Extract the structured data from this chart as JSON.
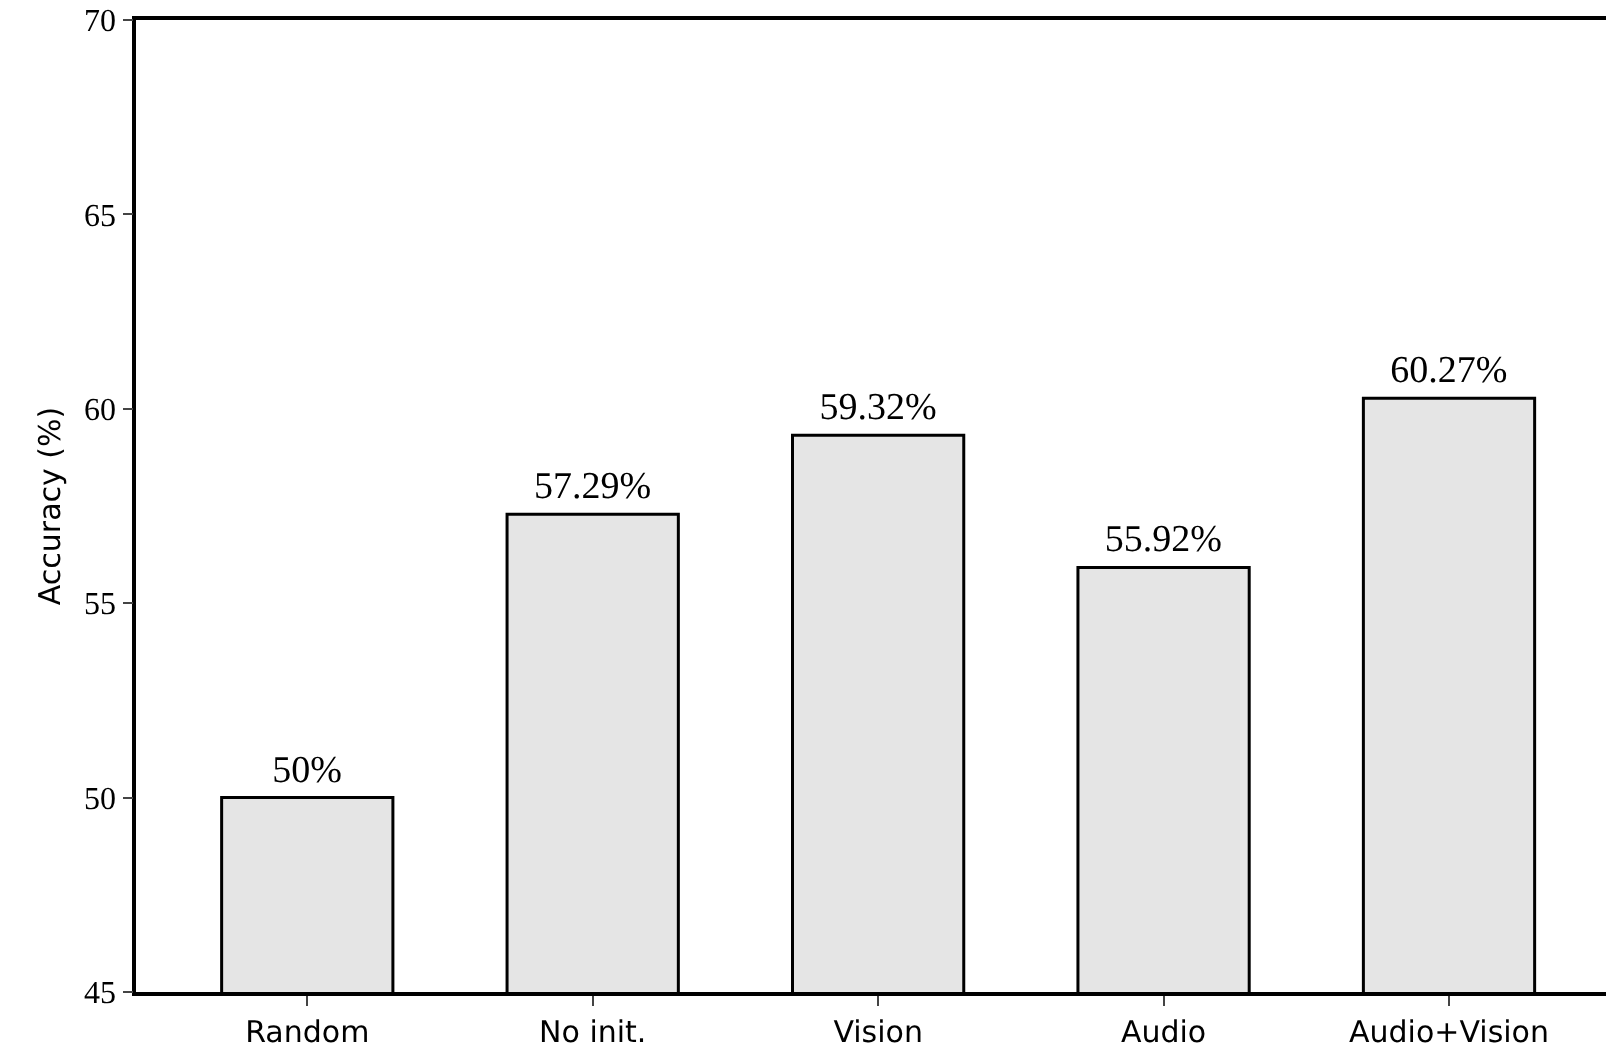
{
  "chart_data": {
    "type": "bar",
    "ylabel": "Accuracy (%)",
    "categories": [
      "Random",
      "No init.",
      "Vision",
      "Audio",
      "Audio+Vision"
    ],
    "values": [
      50,
      57.29,
      59.32,
      55.92,
      60.27
    ],
    "value_labels": [
      "50%",
      "57.29%",
      "59.32%",
      "55.92%",
      "60.27%"
    ],
    "color": "#e5e5e5",
    "ylim": [
      45,
      70
    ],
    "yticks": [
      45,
      50,
      55,
      60,
      65,
      70
    ]
  }
}
